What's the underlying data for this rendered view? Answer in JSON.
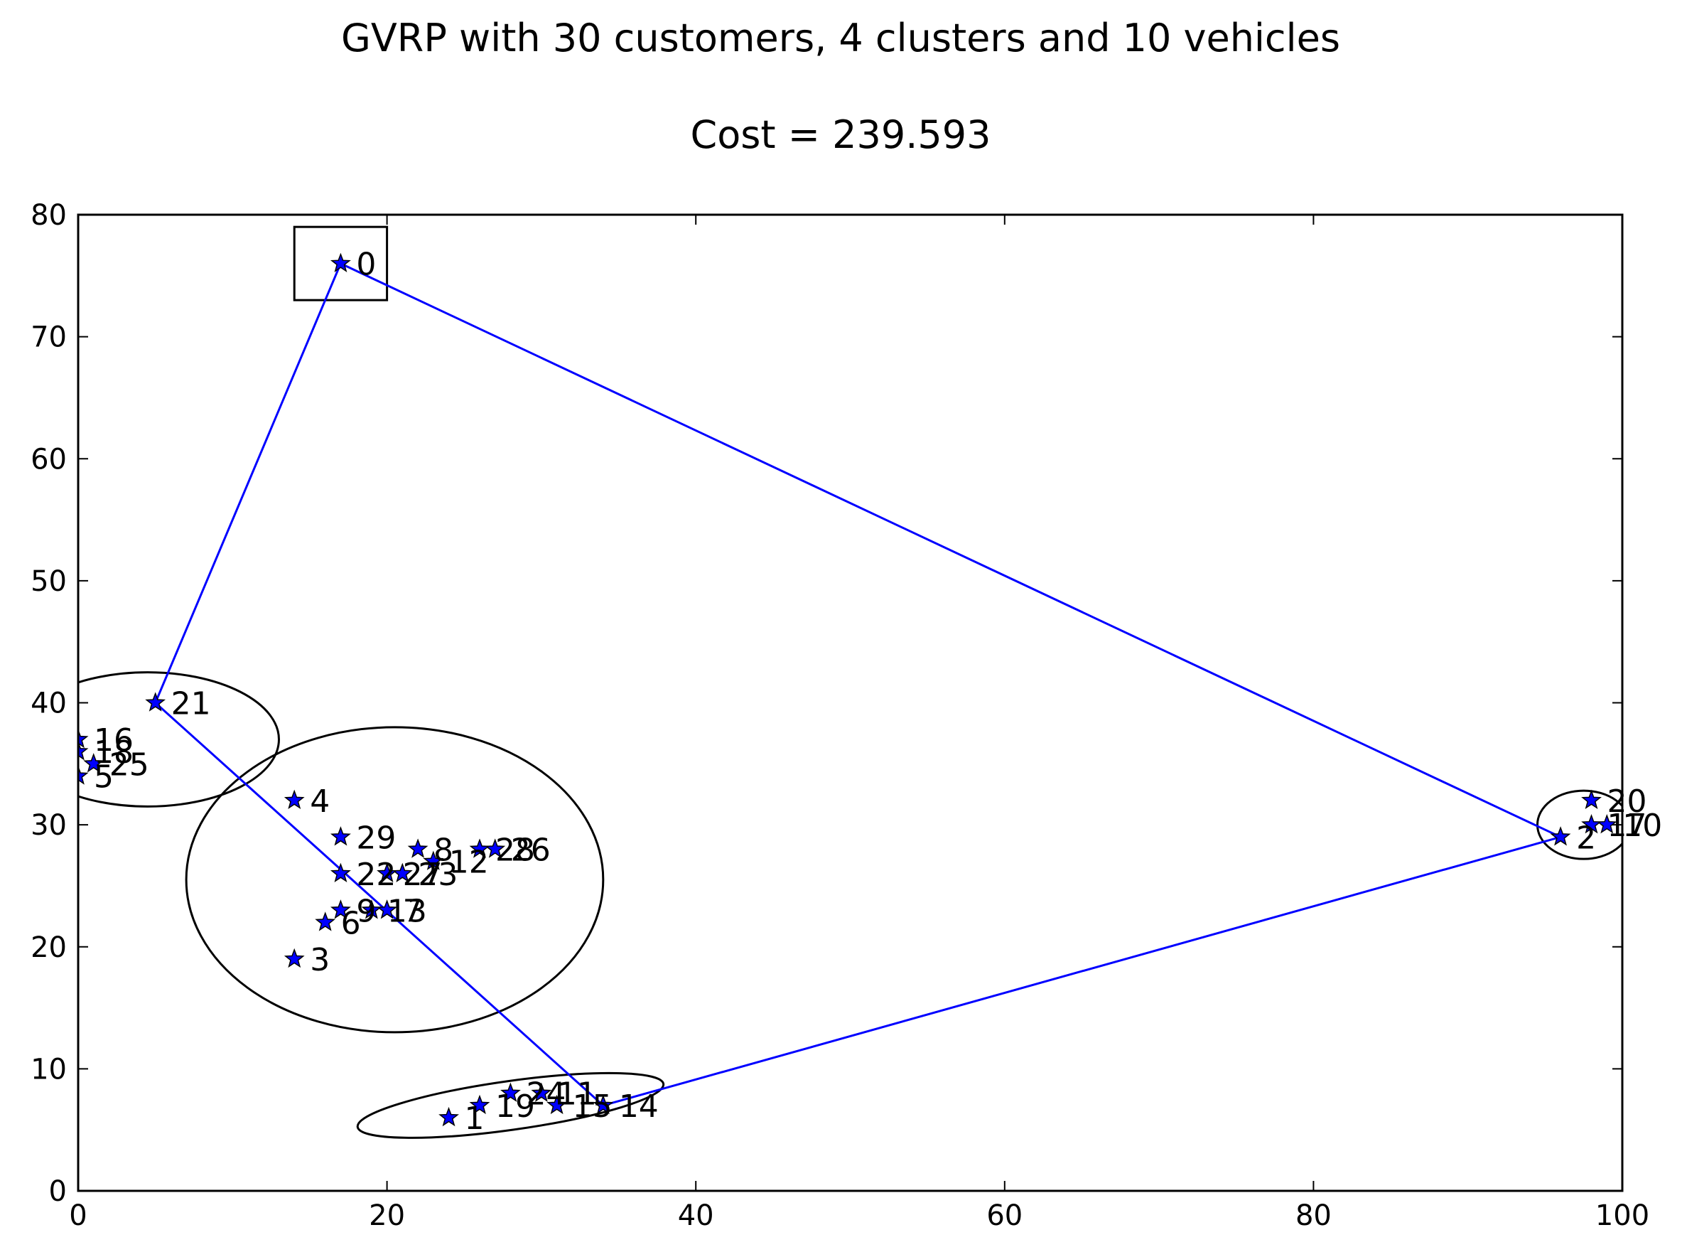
{
  "chart_data": {
    "type": "scatter",
    "title": "GVRP with 30 customers, 4 clusters and 10 vehicles",
    "subtitle": "Cost = 239.593",
    "xlim": [
      0,
      100
    ],
    "ylim": [
      0,
      80
    ],
    "xticks": [
      0,
      20,
      40,
      60,
      80,
      100
    ],
    "yticks": [
      0,
      10,
      20,
      30,
      40,
      50,
      60,
      70,
      80
    ],
    "grid": false,
    "marker_color": "#0000ff",
    "route_color": "#0000ff",
    "points": [
      {
        "label": "0",
        "x": 17,
        "y": 76
      },
      {
        "label": "1",
        "x": 24,
        "y": 6
      },
      {
        "label": "2",
        "x": 96,
        "y": 29
      },
      {
        "label": "3",
        "x": 14,
        "y": 19
      },
      {
        "label": "4",
        "x": 14,
        "y": 32
      },
      {
        "label": "5",
        "x": 0,
        "y": 34
      },
      {
        "label": "6",
        "x": 16,
        "y": 22
      },
      {
        "label": "7",
        "x": 20,
        "y": 23
      },
      {
        "label": "8",
        "x": 22,
        "y": 28
      },
      {
        "label": "9",
        "x": 17,
        "y": 23
      },
      {
        "label": "10",
        "x": 99,
        "y": 30
      },
      {
        "label": "11",
        "x": 30,
        "y": 8
      },
      {
        "label": "12",
        "x": 23,
        "y": 27
      },
      {
        "label": "13",
        "x": 19,
        "y": 23
      },
      {
        "label": "14",
        "x": 34,
        "y": 7
      },
      {
        "label": "15",
        "x": 31,
        "y": 7
      },
      {
        "label": "16",
        "x": 0,
        "y": 37
      },
      {
        "label": "17",
        "x": 98,
        "y": 30
      },
      {
        "label": "18",
        "x": 0,
        "y": 36
      },
      {
        "label": "19",
        "x": 26,
        "y": 7
      },
      {
        "label": "20",
        "x": 98,
        "y": 32
      },
      {
        "label": "21",
        "x": 5,
        "y": 40
      },
      {
        "label": "22",
        "x": 17,
        "y": 26
      },
      {
        "label": "23",
        "x": 21,
        "y": 26
      },
      {
        "label": "24",
        "x": 28,
        "y": 8
      },
      {
        "label": "25",
        "x": 1,
        "y": 35
      },
      {
        "label": "26",
        "x": 27,
        "y": 28
      },
      {
        "label": "27",
        "x": 20,
        "y": 26
      },
      {
        "label": "28",
        "x": 26,
        "y": 28
      },
      {
        "label": "29",
        "x": 17,
        "y": 29
      }
    ],
    "route": [
      [
        17,
        76
      ],
      [
        5,
        40
      ],
      [
        34,
        7
      ],
      [
        96,
        29
      ],
      [
        17,
        76
      ]
    ],
    "depot_box": {
      "x": [
        14,
        20
      ],
      "y": [
        73,
        79
      ]
    },
    "clusters": [
      {
        "cx": 4.5,
        "cy": 37,
        "rx": 8.5,
        "ry": 5.5,
        "angle": 0
      },
      {
        "cx": 20.5,
        "cy": 25.5,
        "rx": 13.5,
        "ry": 12.5,
        "angle": 0
      },
      {
        "cx": 28,
        "cy": 7,
        "rx": 10,
        "ry": 2,
        "angle": 8
      },
      {
        "cx": 97.5,
        "cy": 30,
        "rx": 3,
        "ry": 2.8,
        "angle": 0
      }
    ]
  }
}
